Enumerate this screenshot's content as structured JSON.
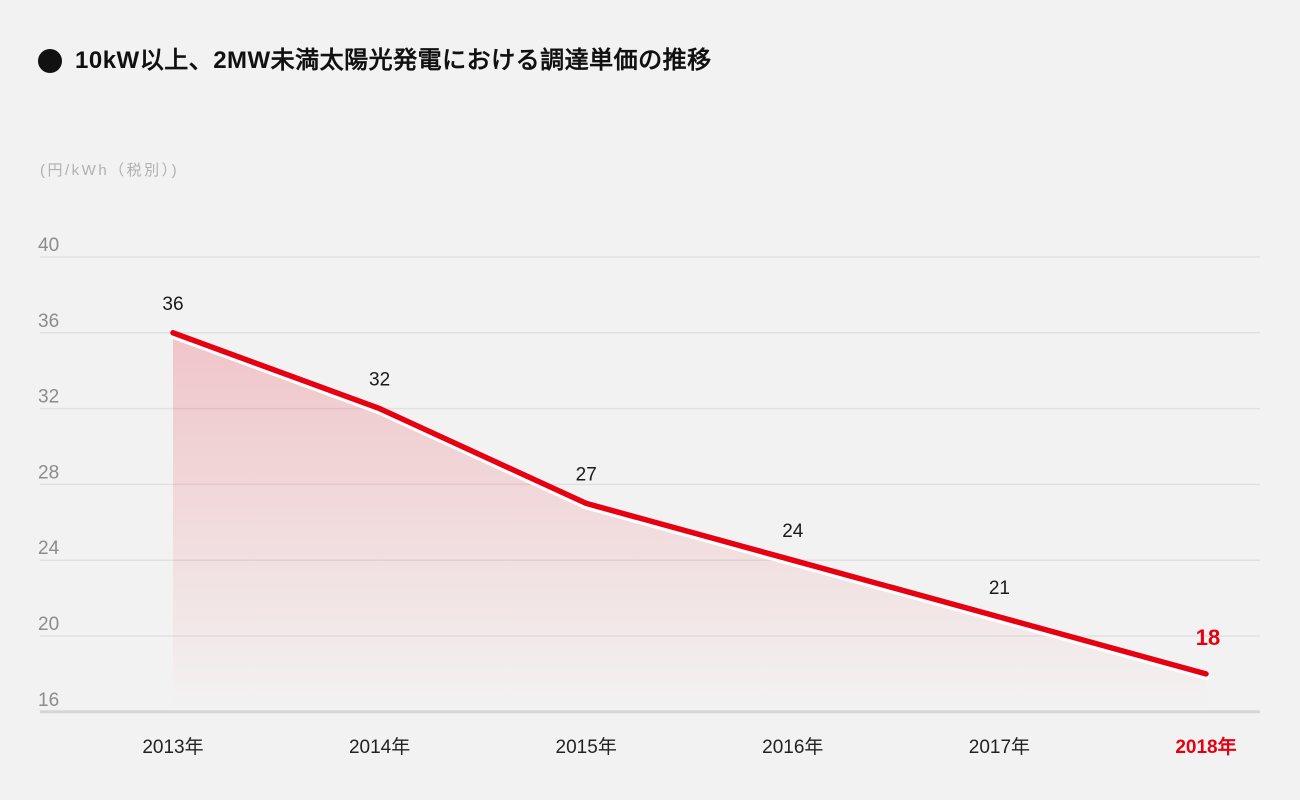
{
  "title": {
    "bullet_icon": "black-circle",
    "text": "10kW以上、2MW未満太陽光発電における調達単価の推移"
  },
  "unit_label": "(円/kWh（税別）)",
  "colors": {
    "background": "#f2f2f2",
    "accent_red": "#e60012",
    "grid_line": "#e2e1e1",
    "axis_base_line": "#d7d6d6",
    "tick_text": "#8c8c8c",
    "unit_text": "#b1b0b0",
    "value_text": "#1a1a1a",
    "x_label_text": "#222222",
    "title_text": "#111111",
    "line_halo": "#ffffff",
    "area_fill_top": "rgba(230,0,18,0.19)",
    "area_fill_bottom": "rgba(230,0,18,0)"
  },
  "chart_data": {
    "type": "area",
    "title": "10kW以上、2MW未満太陽光発電における調達単価の推移",
    "ylabel": "(円/kWh（税別）)",
    "xlabel": "",
    "categories": [
      "2013年",
      "2014年",
      "2015年",
      "2016年",
      "2017年",
      "2018年"
    ],
    "values": [
      36,
      32,
      27,
      24,
      21,
      18
    ],
    "data_labels": [
      "36",
      "32",
      "27",
      "24",
      "21",
      "18"
    ],
    "y_ticks": [
      40,
      36,
      32,
      28,
      24,
      20,
      16
    ],
    "ylim": [
      16,
      40
    ],
    "grid": "horizontal",
    "legend": "none",
    "highlight": {
      "index": 5,
      "category": "2018年",
      "value": 18
    }
  }
}
